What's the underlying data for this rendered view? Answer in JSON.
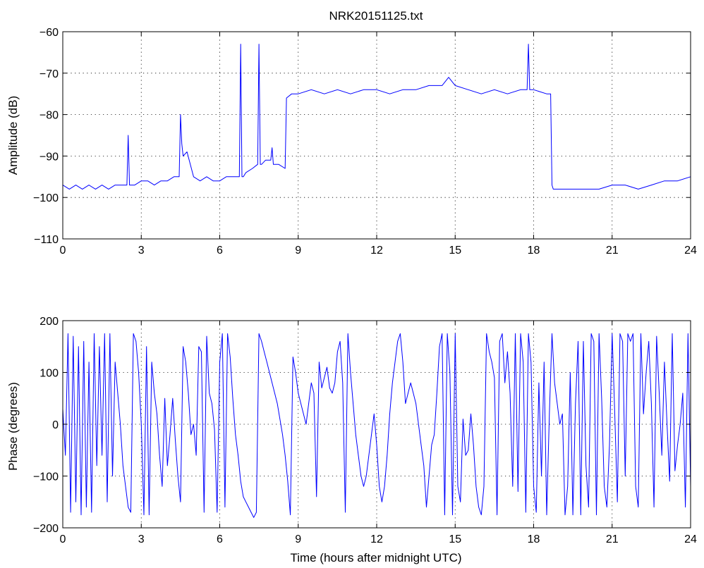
{
  "chart_data": [
    {
      "type": "line",
      "title": "NRK20151125.txt",
      "xlabel": "",
      "ylabel": "Amplitude (dB)",
      "xlim": [
        0,
        24
      ],
      "ylim": [
        -110,
        -60
      ],
      "xticks": [
        0,
        3,
        6,
        9,
        12,
        15,
        18,
        21,
        24
      ],
      "yticks": [
        -110,
        -100,
        -90,
        -80,
        -70,
        -60
      ],
      "xtick_labels": [
        "0",
        "3",
        "6",
        "9",
        "12",
        "15",
        "18",
        "21",
        "24"
      ],
      "ytick_labels": [
        "−110",
        "−100",
        "−90",
        "−80",
        "−70",
        "−60"
      ],
      "grid": true,
      "color": "#0000ff",
      "series": [
        {
          "x": [
            0.0,
            0.25,
            0.5,
            0.75,
            1.0,
            1.25,
            1.5,
            1.75,
            2.0,
            2.25,
            2.45,
            2.5,
            2.55,
            2.75,
            3.0,
            3.25,
            3.5,
            3.75,
            4.0,
            4.25,
            4.45,
            4.5,
            4.55,
            4.6,
            4.75,
            5.0,
            5.25,
            5.5,
            5.75,
            6.0,
            6.25,
            6.5,
            6.75,
            6.8,
            6.85,
            6.9,
            7.0,
            7.25,
            7.45,
            7.5,
            7.55,
            7.6,
            7.75,
            7.95,
            8.0,
            8.05,
            8.25,
            8.5,
            8.55,
            8.75,
            9.0,
            9.5,
            10.0,
            10.5,
            11.0,
            11.5,
            12.0,
            12.5,
            13.0,
            13.5,
            14.0,
            14.5,
            14.75,
            15.0,
            15.5,
            16.0,
            16.5,
            17.0,
            17.5,
            17.75,
            17.8,
            17.85,
            18.0,
            18.5,
            18.65,
            18.7,
            18.75,
            19.0,
            19.5,
            20.0,
            20.5,
            21.0,
            21.5,
            22.0,
            22.5,
            23.0,
            23.5,
            24.0
          ],
          "y": [
            -97,
            -98,
            -97,
            -98,
            -97,
            -98,
            -97,
            -98,
            -97,
            -97,
            -97,
            -85,
            -97,
            -97,
            -96,
            -96,
            -97,
            -96,
            -96,
            -95,
            -95,
            -80,
            -87,
            -90,
            -89,
            -95,
            -96,
            -95,
            -96,
            -96,
            -95,
            -95,
            -95,
            -63,
            -95,
            -95,
            -94,
            -93,
            -92,
            -63,
            -92,
            -92,
            -91,
            -91,
            -88,
            -92,
            -92,
            -93,
            -76,
            -75,
            -75,
            -74,
            -75,
            -74,
            -75,
            -74,
            -74,
            -75,
            -74,
            -74,
            -73,
            -73,
            -71,
            -73,
            -74,
            -75,
            -74,
            -75,
            -74,
            -74,
            -63,
            -74,
            -74,
            -75,
            -75,
            -97,
            -98,
            -98,
            -98,
            -98,
            -98,
            -97,
            -97,
            -98,
            -97,
            -96,
            -96,
            -95
          ]
        }
      ]
    },
    {
      "type": "line",
      "title": "",
      "xlabel": "Time (hours after midnight UTC)",
      "ylabel": "Phase (degrees)",
      "xlim": [
        0,
        24
      ],
      "ylim": [
        -200,
        200
      ],
      "xticks": [
        0,
        3,
        6,
        9,
        12,
        15,
        18,
        21,
        24
      ],
      "yticks": [
        -200,
        -100,
        0,
        100,
        200
      ],
      "xtick_labels": [
        "0",
        "3",
        "6",
        "9",
        "12",
        "15",
        "18",
        "21",
        "24"
      ],
      "ytick_labels": [
        "−200",
        "−100",
        "0",
        "100",
        "200"
      ],
      "grid": true,
      "color": "#0000ff",
      "series": [
        {
          "x": [
            0.0,
            0.1,
            0.2,
            0.3,
            0.4,
            0.5,
            0.6,
            0.7,
            0.8,
            0.9,
            1.0,
            1.1,
            1.2,
            1.3,
            1.4,
            1.5,
            1.6,
            1.7,
            1.8,
            1.9,
            2.0,
            2.1,
            2.2,
            2.3,
            2.4,
            2.5,
            2.6,
            2.7,
            2.8,
            2.9,
            3.0,
            3.1,
            3.2,
            3.3,
            3.4,
            3.5,
            3.6,
            3.7,
            3.8,
            3.9,
            4.0,
            4.1,
            4.2,
            4.3,
            4.4,
            4.5,
            4.6,
            4.7,
            4.8,
            4.9,
            5.0,
            5.1,
            5.2,
            5.3,
            5.4,
            5.5,
            5.6,
            5.7,
            5.8,
            5.9,
            6.0,
            6.1,
            6.2,
            6.3,
            6.4,
            6.5,
            6.6,
            6.7,
            6.8,
            6.9,
            7.0,
            7.1,
            7.2,
            7.3,
            7.4,
            7.5,
            7.6,
            7.7,
            7.8,
            7.9,
            8.0,
            8.1,
            8.2,
            8.3,
            8.4,
            8.5,
            8.6,
            8.7,
            8.8,
            8.9,
            9.0,
            9.1,
            9.2,
            9.3,
            9.4,
            9.5,
            9.6,
            9.7,
            9.8,
            9.9,
            10.0,
            10.1,
            10.2,
            10.3,
            10.4,
            10.5,
            10.6,
            10.7,
            10.8,
            10.9,
            11.0,
            11.1,
            11.2,
            11.3,
            11.4,
            11.5,
            11.6,
            11.7,
            11.8,
            11.9,
            12.0,
            12.1,
            12.2,
            12.3,
            12.4,
            12.5,
            12.6,
            12.7,
            12.8,
            12.9,
            13.0,
            13.1,
            13.2,
            13.3,
            13.4,
            13.5,
            13.6,
            13.7,
            13.8,
            13.9,
            14.0,
            14.1,
            14.2,
            14.3,
            14.4,
            14.5,
            14.6,
            14.7,
            14.8,
            14.9,
            15.0,
            15.1,
            15.2,
            15.3,
            15.4,
            15.5,
            15.6,
            15.7,
            15.8,
            15.9,
            16.0,
            16.1,
            16.2,
            16.3,
            16.4,
            16.5,
            16.6,
            16.7,
            16.8,
            16.9,
            17.0,
            17.1,
            17.2,
            17.3,
            17.4,
            17.5,
            17.6,
            17.7,
            17.8,
            17.9,
            18.0,
            18.1,
            18.2,
            18.3,
            18.4,
            18.5,
            18.6,
            18.7,
            18.8,
            18.9,
            19.0,
            19.1,
            19.2,
            19.3,
            19.4,
            19.5,
            19.6,
            19.7,
            19.8,
            19.9,
            20.0,
            20.1,
            20.2,
            20.3,
            20.4,
            20.5,
            20.6,
            20.7,
            20.8,
            20.9,
            21.0,
            21.1,
            21.2,
            21.3,
            21.4,
            21.5,
            21.6,
            21.7,
            21.8,
            21.9,
            22.0,
            22.1,
            22.2,
            22.3,
            22.4,
            22.5,
            22.6,
            22.7,
            22.8,
            22.9,
            23.0,
            23.1,
            23.2,
            23.3,
            23.4,
            23.5,
            23.6,
            23.7,
            23.8,
            23.9,
            24.0
          ],
          "y": [
            30,
            -60,
            175,
            -170,
            170,
            -150,
            150,
            -175,
            160,
            -160,
            120,
            -170,
            175,
            -80,
            150,
            -60,
            175,
            -150,
            175,
            -100,
            120,
            60,
            0,
            -80,
            -120,
            -160,
            -170,
            175,
            160,
            100,
            0,
            -175,
            150,
            -175,
            120,
            60,
            20,
            -60,
            -120,
            50,
            -80,
            -20,
            50,
            -30,
            -100,
            -150,
            150,
            120,
            60,
            -20,
            0,
            -60,
            150,
            140,
            -170,
            170,
            60,
            40,
            -10,
            -170,
            120,
            175,
            -160,
            175,
            130,
            50,
            -20,
            -60,
            -110,
            -140,
            -150,
            -160,
            -170,
            -180,
            -170,
            175,
            160,
            140,
            120,
            100,
            80,
            60,
            40,
            10,
            -20,
            -60,
            -110,
            -175,
            130,
            100,
            60,
            40,
            20,
            0,
            40,
            80,
            60,
            -140,
            120,
            70,
            90,
            110,
            70,
            60,
            80,
            140,
            160,
            80,
            -170,
            175,
            100,
            40,
            -20,
            -60,
            -100,
            -120,
            -100,
            -60,
            -20,
            20,
            -40,
            -120,
            -150,
            -120,
            -60,
            20,
            80,
            120,
            160,
            175,
            120,
            40,
            60,
            80,
            60,
            40,
            0,
            -40,
            -80,
            -160,
            -100,
            -40,
            -20,
            60,
            150,
            175,
            -175,
            175,
            100,
            -175,
            175,
            -120,
            -150,
            10,
            -60,
            -50,
            20,
            -40,
            -120,
            -160,
            -175,
            -120,
            175,
            140,
            120,
            90,
            -175,
            160,
            175,
            80,
            140,
            60,
            -120,
            175,
            -130,
            175,
            120,
            -170,
            175,
            120,
            -120,
            -170,
            80,
            -100,
            120,
            -175,
            20,
            175,
            80,
            40,
            0,
            20,
            -175,
            -120,
            100,
            -175,
            40,
            160,
            -175,
            160,
            -80,
            -160,
            175,
            160,
            -175,
            175,
            50,
            -120,
            -160,
            -40,
            175,
            20,
            -150,
            175,
            160,
            -100,
            175,
            160,
            175,
            -120,
            -160,
            175,
            20,
            100,
            160,
            40,
            -160,
            170,
            60,
            -60,
            120,
            0,
            -110,
            175,
            -90,
            -40,
            0,
            60,
            -160,
            175,
            -120
          ]
        }
      ]
    }
  ]
}
